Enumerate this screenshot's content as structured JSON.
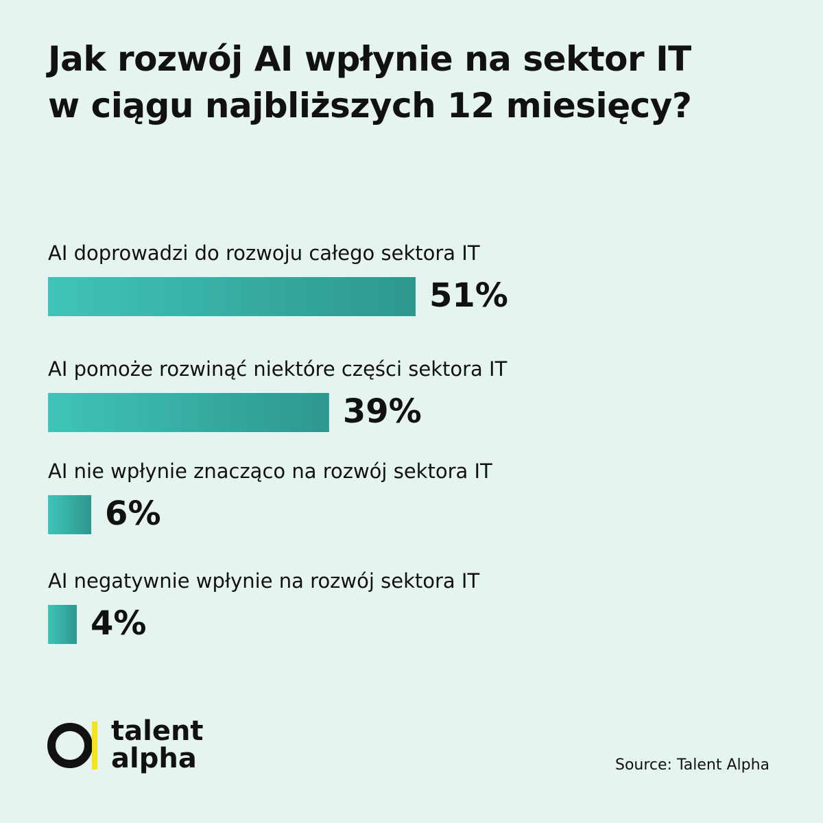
{
  "chart_data": {
    "type": "hbar",
    "title": "Jak rozwój AI wpłynie na sektor IT w ciągu najbliższych 12 miesięcy?",
    "categories": [
      "AI doprowadzi do rozwoju całego sektora IT",
      "AI pomoże rozwinąć niektóre części sektora IT",
      "AI nie wpłynie znacząco na rozwój sektora IT",
      "AI negatywnie wpłynie na rozwój sektora IT"
    ],
    "values": [
      51,
      39,
      6,
      4
    ],
    "value_labels": [
      "51%",
      "39%",
      "6%",
      "4%"
    ],
    "gradient": [
      "#40c4b7",
      "#2e978e"
    ],
    "source": "Source: Talent Alpha"
  },
  "logo": [
    "talent",
    "alpha"
  ]
}
